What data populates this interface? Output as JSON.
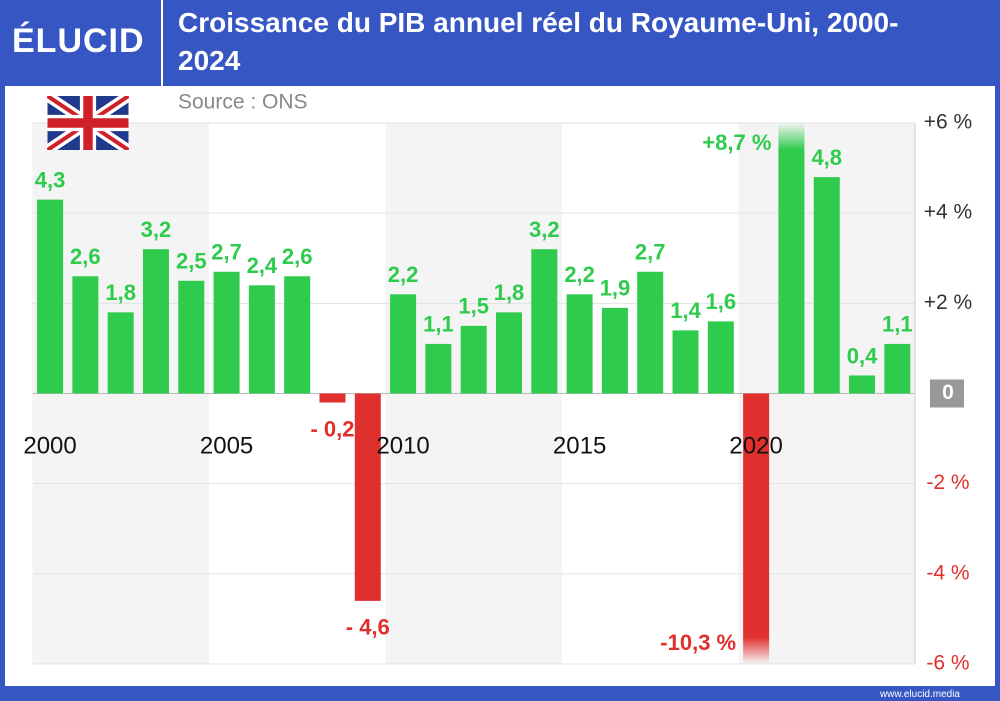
{
  "brand": "ÉLUCID",
  "website": "www.elucid.media",
  "chart_data": {
    "type": "bar",
    "title": "Croissance du PIB annuel réel du Royaume-Uni, 2000-2024",
    "subtitle": "Source : ONS",
    "categories": [
      "2000",
      null,
      null,
      null,
      null,
      "2005",
      null,
      null,
      null,
      null,
      "2010",
      null,
      null,
      null,
      null,
      "2015",
      null,
      null,
      null,
      null,
      "2020",
      null,
      null,
      null,
      null
    ],
    "values": [
      4.3,
      2.6,
      1.8,
      3.2,
      2.5,
      2.7,
      2.4,
      2.6,
      -0.2,
      -4.6,
      2.2,
      1.1,
      1.5,
      1.8,
      3.2,
      2.2,
      1.9,
      2.7,
      1.4,
      1.6,
      -10.3,
      8.7,
      4.8,
      0.4,
      1.1
    ],
    "value_labels": [
      "4,3",
      "2,6",
      "1,8",
      "3,2",
      "2,5",
      "2,7",
      "2,4",
      "2,6",
      "- 0,2",
      "- 4,6",
      "2,2",
      "1,1",
      "1,5",
      "1,8",
      "3,2",
      "2,2",
      "1,9",
      "2,7",
      "1,4",
      "1,6",
      "-10,3 %",
      "+8,7 %",
      "4,8",
      "0,4",
      "1,1"
    ],
    "color": "#2ecb4c",
    "negative_color": "#e0302e",
    "ylim": [
      -6,
      6
    ],
    "yticks": [
      {
        "value": 6,
        "label": "+6 %"
      },
      {
        "value": 4,
        "label": "+4 %"
      },
      {
        "value": 2,
        "label": "+2 %"
      },
      0,
      {
        "value": -2,
        "label": "-2 %"
      },
      {
        "value": -4,
        "label": "-4 %"
      },
      {
        "value": -6,
        "label": "-6 %"
      }
    ],
    "grid": true
  }
}
